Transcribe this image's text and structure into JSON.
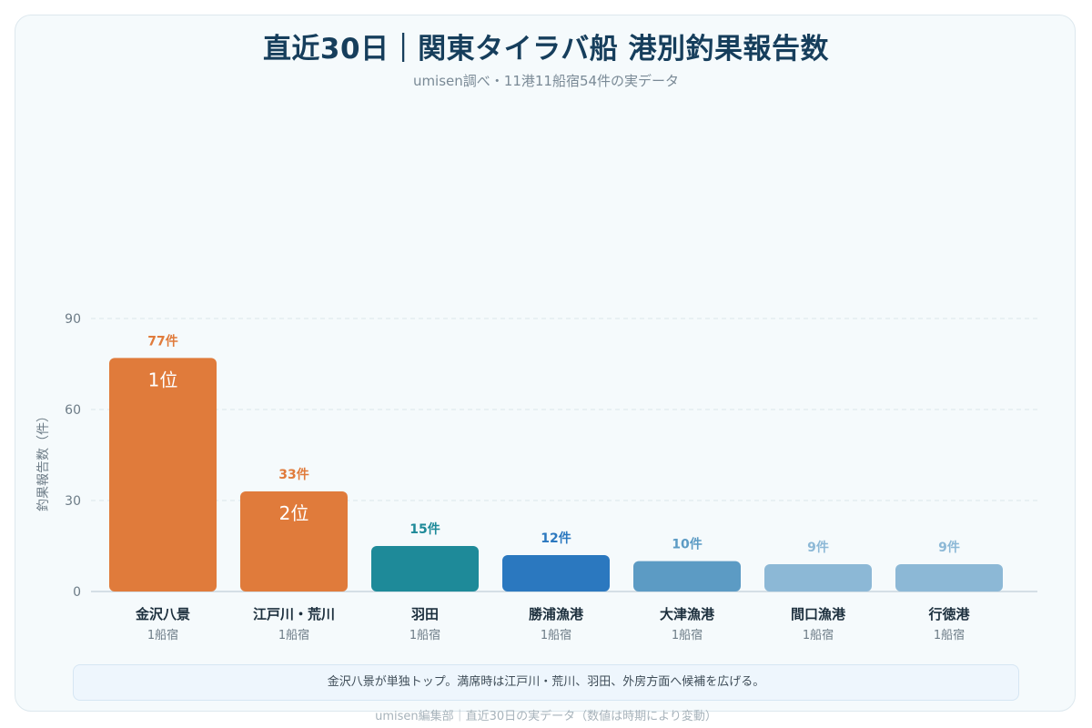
{
  "title": "直近30日｜関東タイラバ船 港別釣果報告数",
  "subtitle": "umisen調べ・11港11船宿54件の実データ",
  "note": "金沢八景が単独トップ。満席時は江戸川・荒川、羽田、外房方面へ候補を広げる。",
  "footer": "umisen編集部｜直近30日の実データ（数値は時期により変動）",
  "colors": {
    "rank1": "#e07b3b",
    "rank2": "#e07b3b",
    "teal": "#1e8a99",
    "blue": "#2b78bf",
    "steel": "#5c9bc4",
    "light": "#8cb8d6",
    "grid": "#dbe5ea",
    "axis_text": "#6d7c87",
    "cat_text": "#1c2f3d",
    "sub_text": "#6d7c87"
  },
  "chart_data": {
    "type": "bar",
    "title": "直近30日｜関東タイラバ船 港別釣果報告数",
    "ylabel": "釣果報告数（件）",
    "xlabel": "",
    "ylim": [
      0,
      90
    ],
    "yticks": [
      0,
      30,
      60,
      90
    ],
    "grid": true,
    "categories": [
      "金沢八景",
      "江戸川・荒川",
      "羽田",
      "勝浦漁港",
      "大津漁港",
      "間口漁港",
      "行徳港"
    ],
    "subcategories": [
      "1船宿",
      "1船宿",
      "1船宿",
      "1船宿",
      "1船宿",
      "1船宿",
      "1船宿"
    ],
    "values": [
      77,
      33,
      15,
      12,
      10,
      9,
      9
    ],
    "value_labels": [
      "77件",
      "33件",
      "15件",
      "12件",
      "10件",
      "9件",
      "9件"
    ],
    "rank_labels": [
      "1位",
      "2位",
      "",
      "",
      "",
      "",
      ""
    ],
    "bar_colors": [
      "#e07b3b",
      "#e07b3b",
      "#1e8a99",
      "#2b78bf",
      "#5c9bc4",
      "#8cb8d6",
      "#8cb8d6"
    ]
  }
}
